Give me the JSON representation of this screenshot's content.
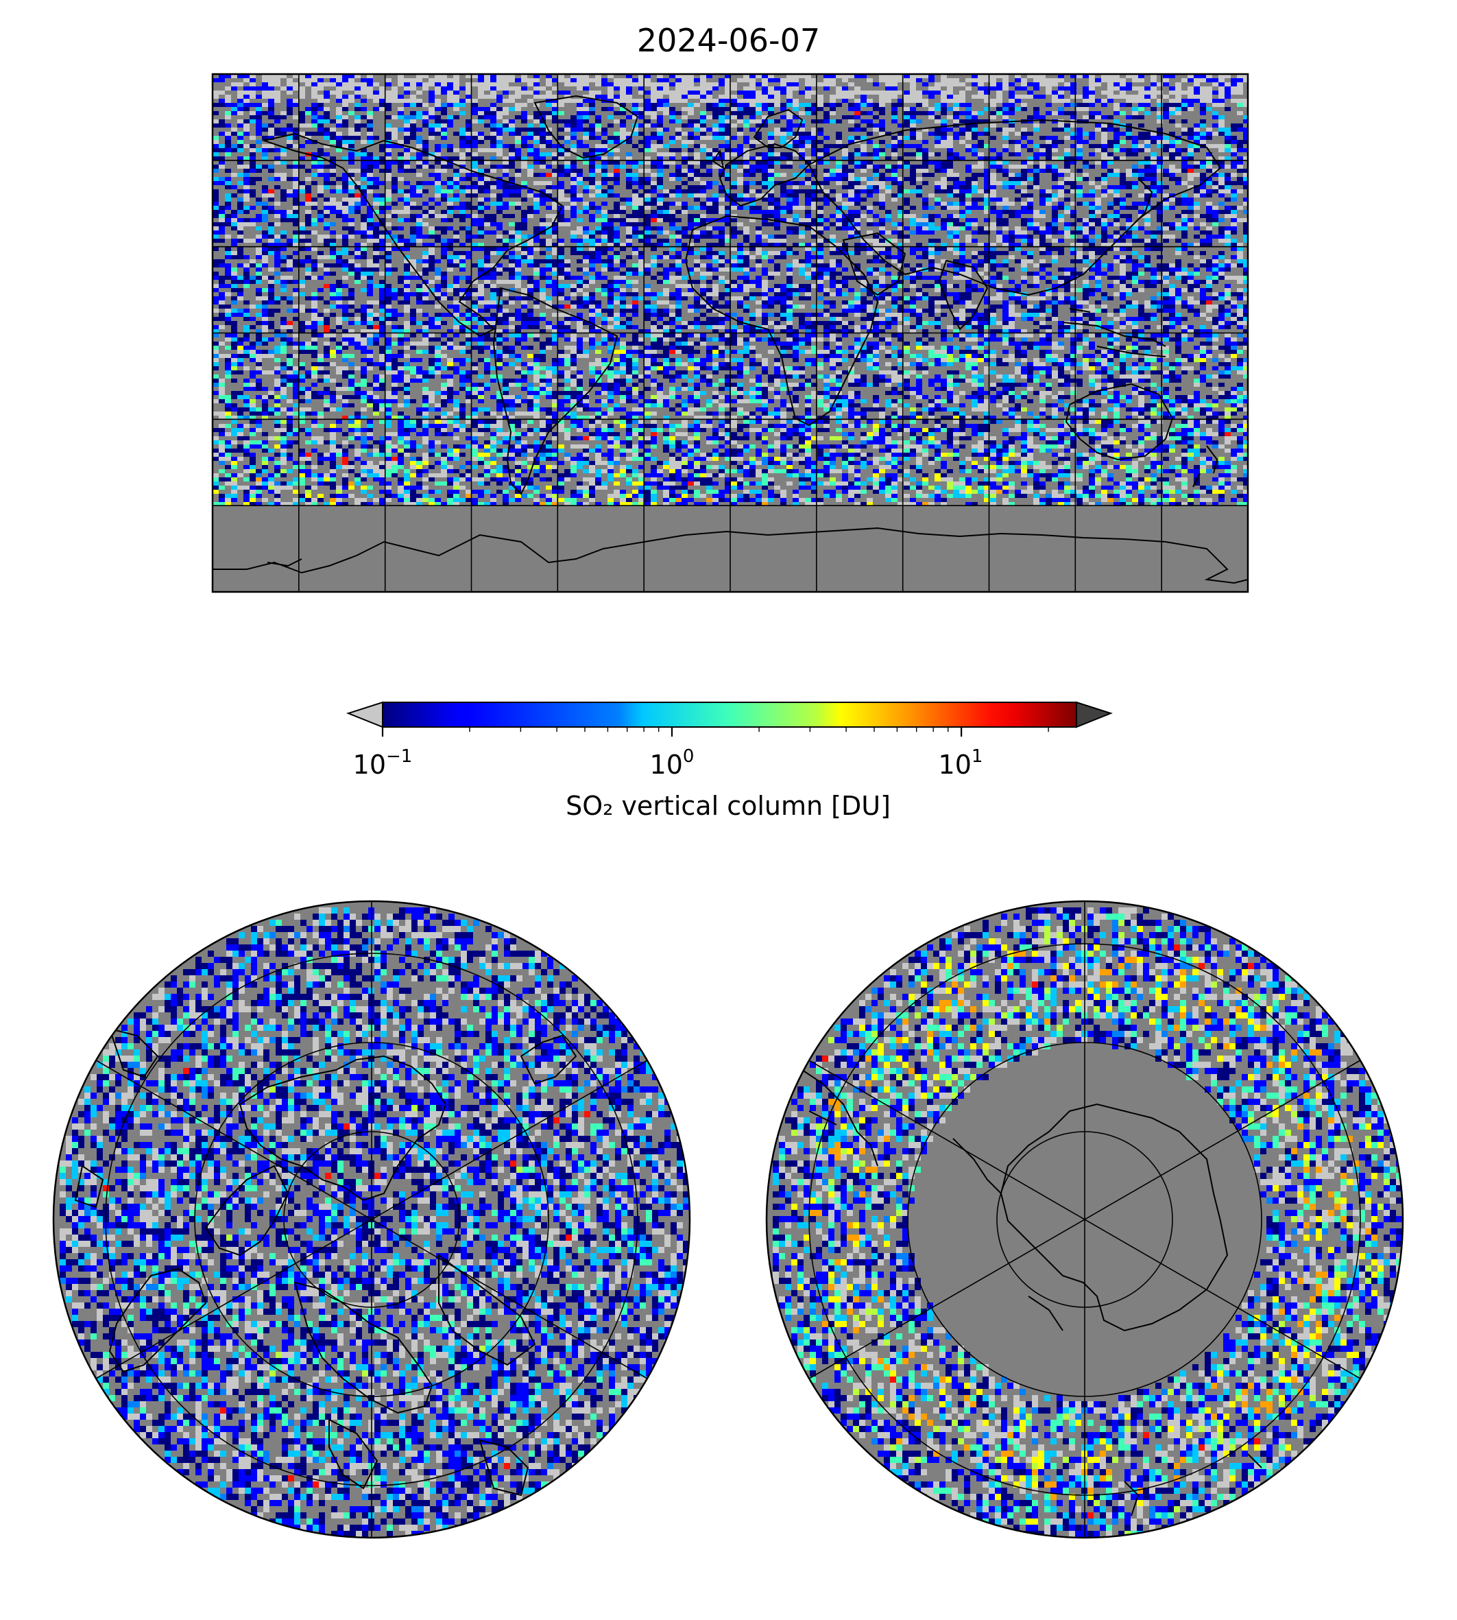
{
  "figure": {
    "title": "2024-06-07"
  },
  "colorbar": {
    "label": "SO₂ vertical column [DU]",
    "scale": "log",
    "colormap": "jet",
    "range": [
      0.1,
      25
    ],
    "extend": "both",
    "under_color": "#c8c8c8",
    "over_color": "#404040",
    "ticks": [
      {
        "base": "10",
        "exp": "−1",
        "value": 0.1
      },
      {
        "base": "10",
        "exp": "0",
        "value": 1
      },
      {
        "base": "10",
        "exp": "1",
        "value": 10
      }
    ]
  },
  "colors": {
    "no_data": "#808080",
    "below_range": "#c8c8c8",
    "coastline": "#000000",
    "graticule": "#000000"
  },
  "maps": [
    {
      "id": "global",
      "projection": "plate-carree",
      "graticule_lon_step": 30,
      "graticule_lat_step": 30
    },
    {
      "id": "north-polar",
      "projection": "north-polar-stereographic"
    },
    {
      "id": "south-polar",
      "projection": "south-polar-stereographic"
    }
  ]
}
